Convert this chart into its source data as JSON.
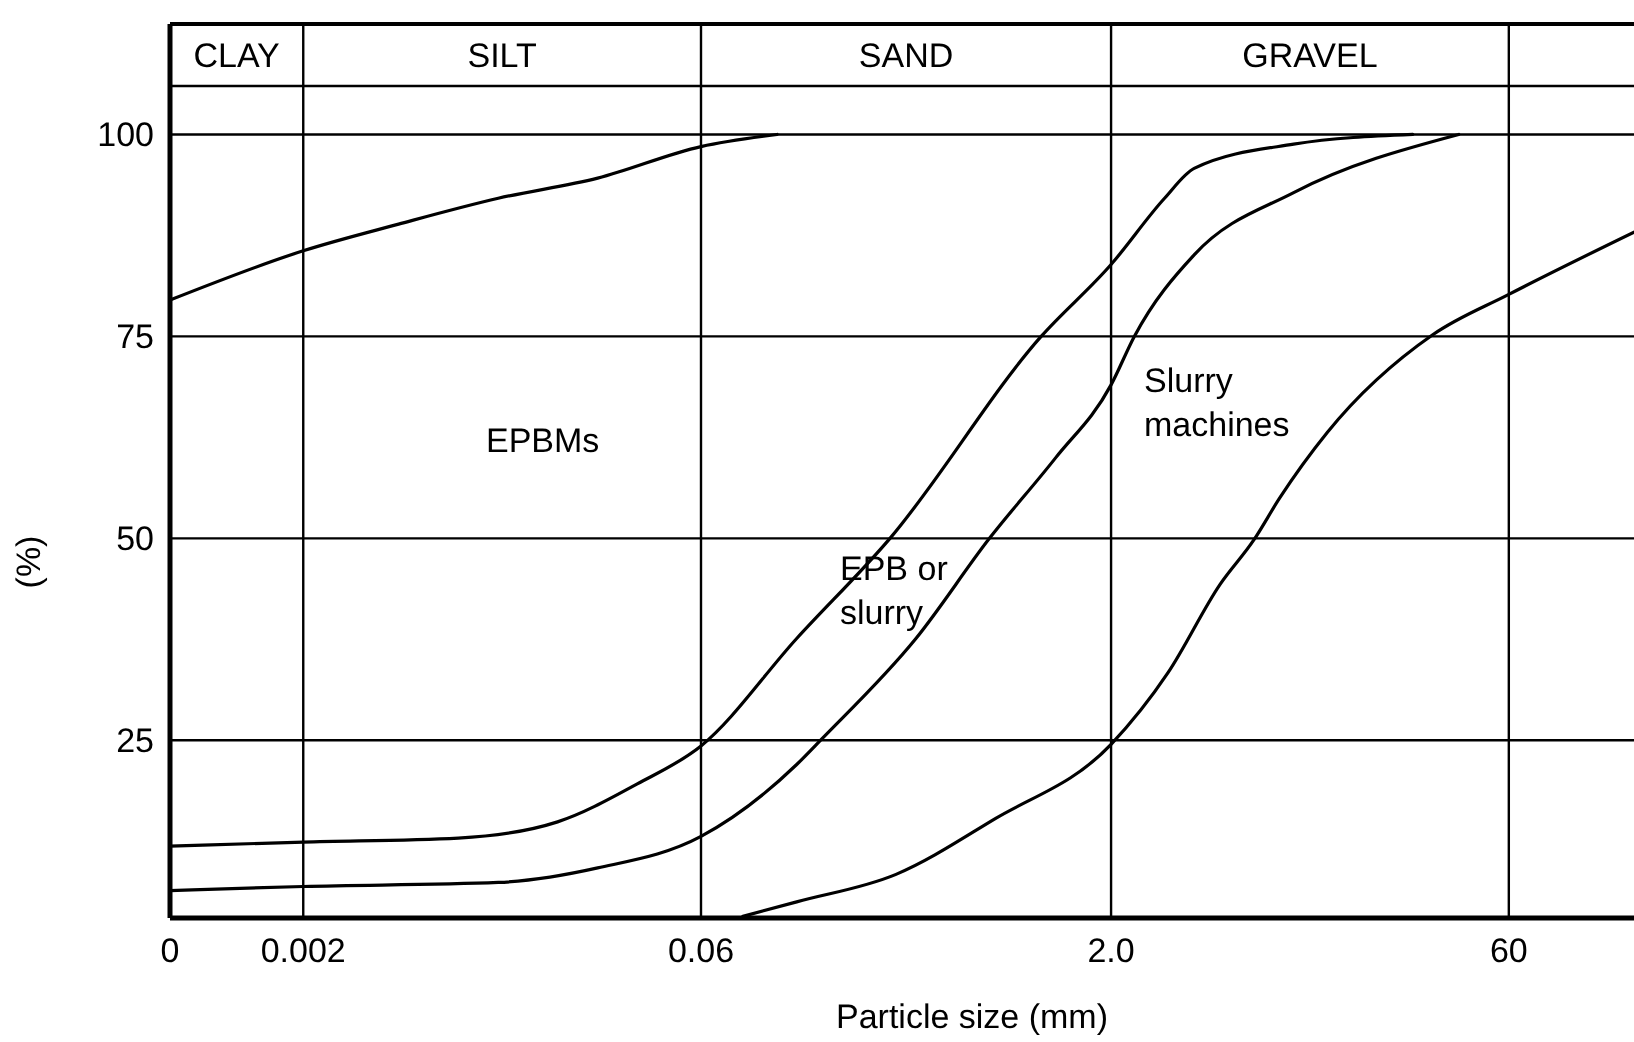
{
  "chart_data": {
    "type": "line",
    "xlabel": "Particle size (mm)",
    "ylabel": "(%)",
    "log": "x",
    "xlim": [
      0.00064,
      175
    ],
    "xticks": [
      {
        "value": 0.00064,
        "label": "0"
      },
      0.002,
      0.06,
      {
        "value": 2,
        "label": "2.0"
      },
      60
    ],
    "ylim": [
      3,
      106
    ],
    "yticks": [
      25,
      50,
      75,
      100
    ],
    "grid": true,
    "series": [
      {
        "color": "#000000",
        "x": [
          0.00064,
          0.002,
          0.00452,
          0.0106,
          0.0248,
          0.06,
          0.115
        ],
        "values": [
          79.5,
          85.6,
          88.9,
          92.1,
          94.6,
          98.5,
          100
        ]
      },
      {
        "color": "#000000",
        "x": [
          0.00064,
          0.002,
          0.00753,
          0.0176,
          0.0348,
          0.06,
          0.136,
          0.302,
          1.1,
          2,
          3.16,
          4.07,
          9.53,
          26.4
        ],
        "values": [
          11.9,
          12.4,
          12.9,
          14.9,
          19.6,
          24.3,
          37.6,
          50,
          75,
          83.9,
          92.1,
          95.8,
          98.8,
          100
        ]
      },
      {
        "color": "#000000",
        "x": [
          0.00064,
          0.002,
          0.0106,
          0.0248,
          0.06,
          0.136,
          0.169,
          0.377,
          0.707,
          1.24,
          2,
          2.44,
          4.07,
          9.53,
          39.1
        ],
        "values": [
          6.4,
          6.9,
          7.4,
          9.2,
          13.1,
          22,
          25.2,
          37.6,
          50,
          59.9,
          69,
          75,
          85.1,
          92.8,
          100
        ]
      },
      {
        "color": "#000000",
        "x": [
          0.0858,
          0.136,
          0.318,
          0.743,
          2,
          3.26,
          5.08,
          6.78,
          8.46,
          12.7,
          31.3,
          60,
          175
        ],
        "values": [
          3.2,
          5,
          8.4,
          15.3,
          24.5,
          33.4,
          44.3,
          49.8,
          55,
          63.1,
          75.2,
          80.2,
          87.9
        ]
      }
    ],
    "annotations": [
      "CLAY",
      "SILT",
      "SAND",
      "GRAVEL",
      "EPBMs",
      "EPB or slurry",
      "Slurry machines"
    ]
  }
}
